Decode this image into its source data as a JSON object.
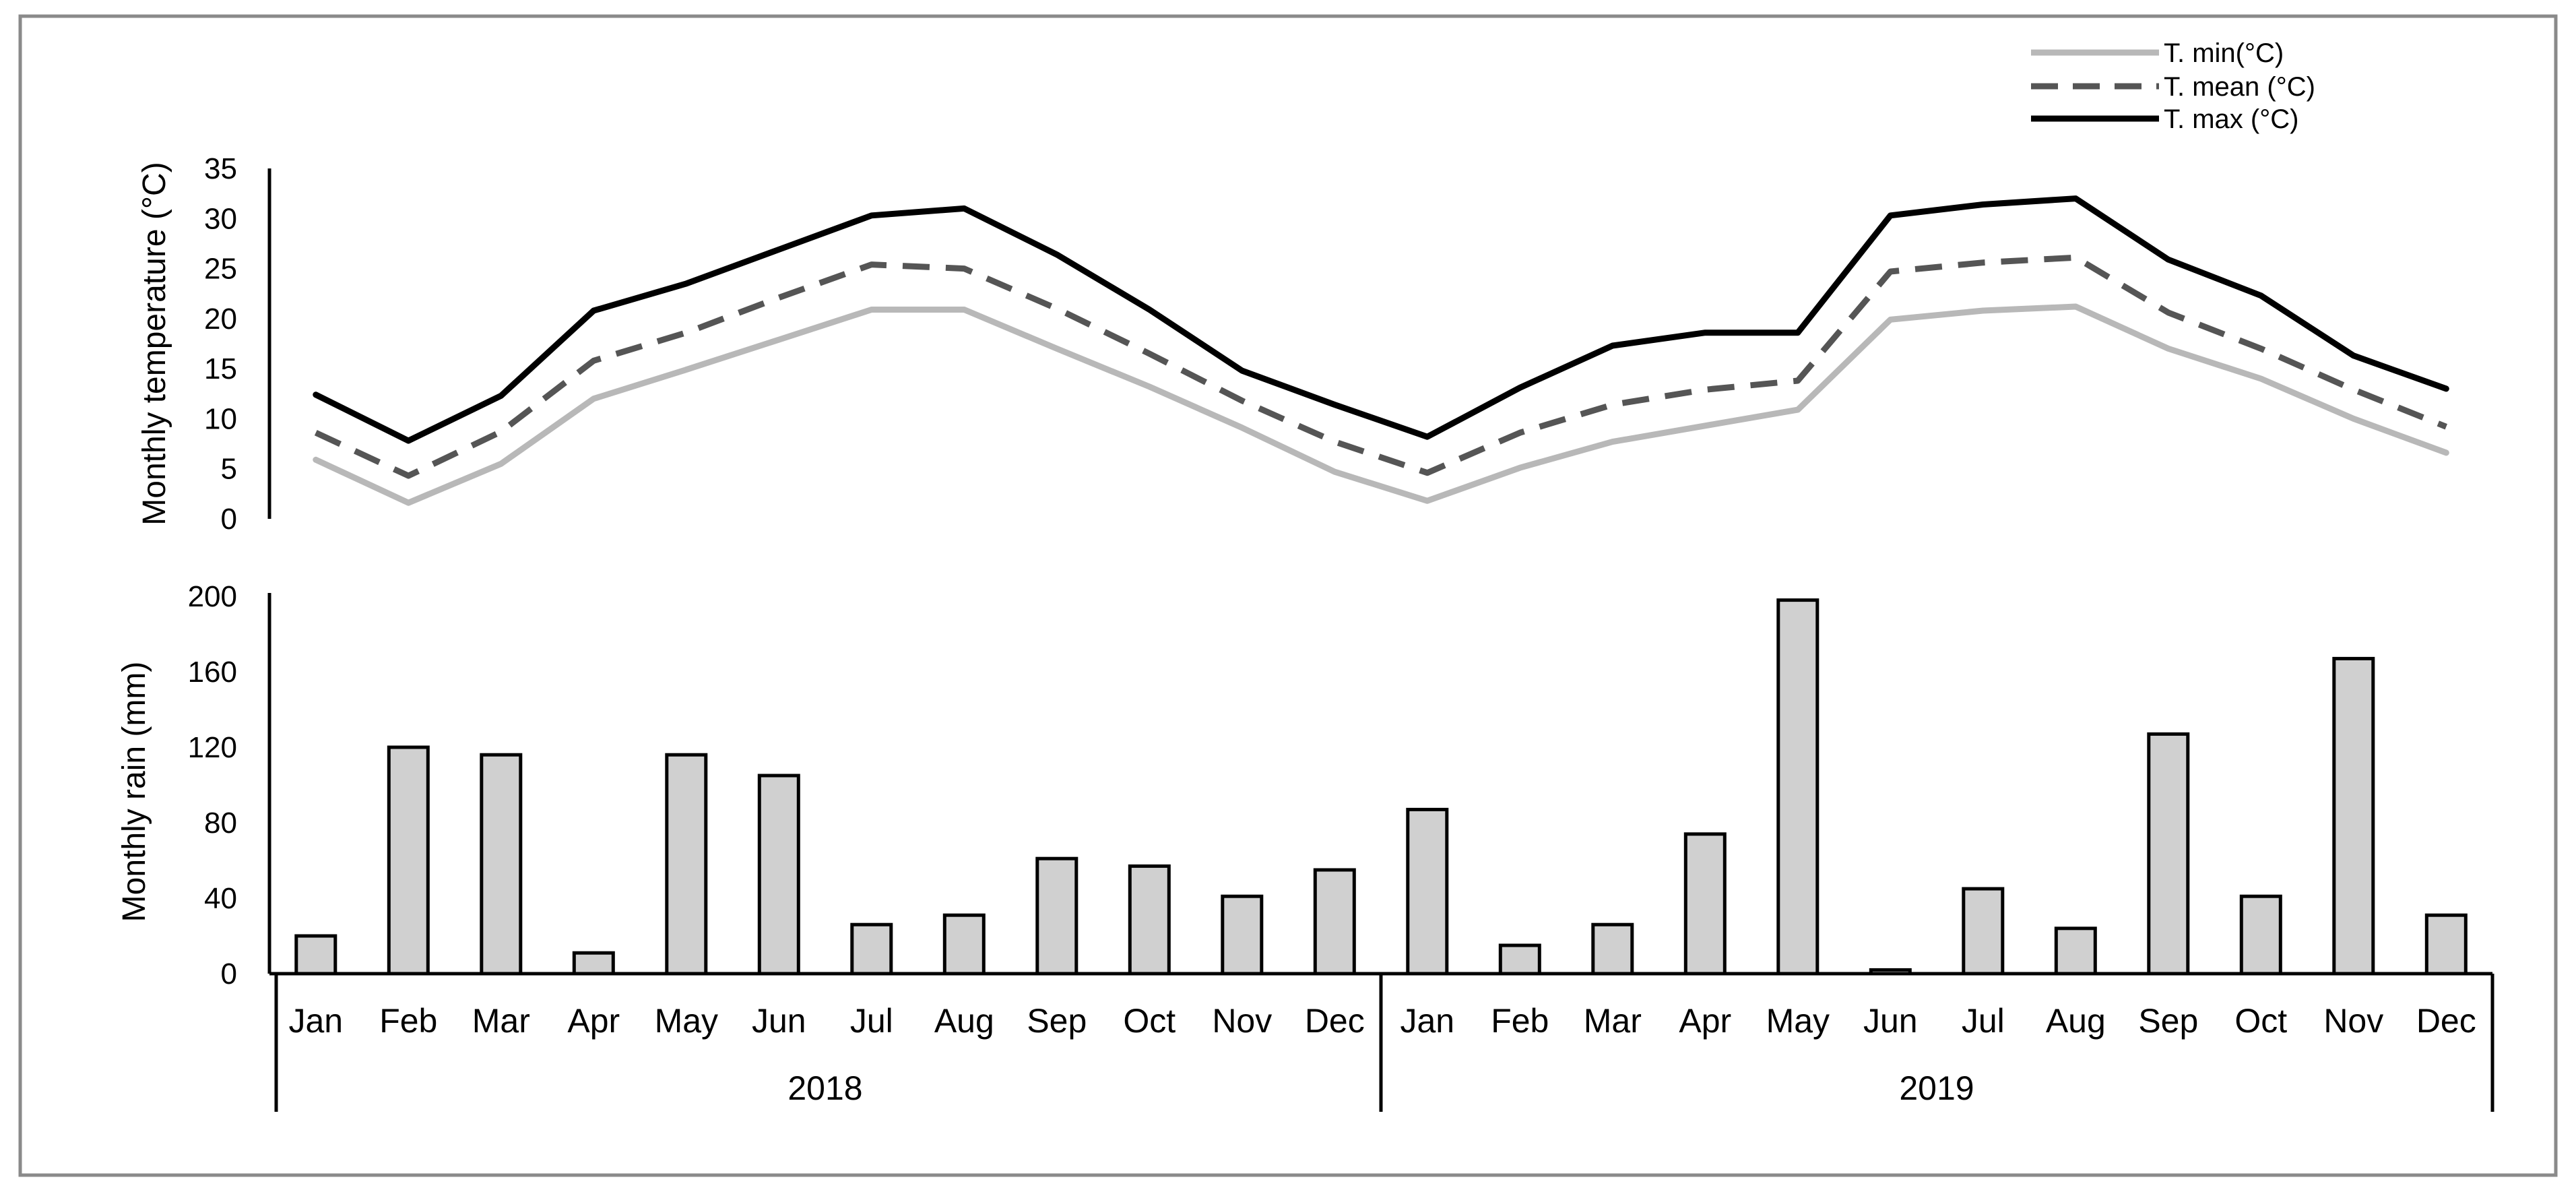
{
  "chart_data": [
    {
      "type": "line",
      "ylabel": "Monthly temperature (°C)",
      "ylim": [
        0,
        35
      ],
      "yticks": [
        0,
        5,
        10,
        15,
        20,
        25,
        30,
        35
      ],
      "grid": false,
      "legend": "top-right",
      "categories": [
        "Jan",
        "Feb",
        "Mar",
        "Apr",
        "May",
        "Jun",
        "Jul",
        "Aug",
        "Sep",
        "Oct",
        "Nov",
        "Dec",
        "Jan",
        "Feb",
        "Mar",
        "Apr",
        "May",
        "Jun",
        "Jul",
        "Aug",
        "Sep",
        "Oct",
        "Nov",
        "Dec"
      ],
      "series": [
        {
          "name": "T. min(°C)",
          "color": "#b8b8b8",
          "style": "solid",
          "values": [
            5.9,
            1.6,
            5.5,
            12.0,
            14.9,
            17.9,
            20.9,
            20.9,
            17.0,
            13.2,
            9.1,
            4.7,
            1.8,
            5.1,
            7.7,
            9.3,
            10.9,
            19.9,
            20.8,
            21.2,
            17.0,
            14.0,
            10.0,
            6.6
          ]
        },
        {
          "name": "T. mean (°C)",
          "color": "#555555",
          "style": "dashed",
          "values": [
            8.6,
            4.3,
            8.7,
            15.8,
            18.6,
            22.1,
            25.4,
            25.0,
            21.0,
            16.5,
            11.8,
            7.7,
            4.6,
            8.6,
            11.4,
            12.9,
            13.8,
            24.7,
            25.6,
            26.1,
            20.6,
            17.0,
            12.9,
            9.2
          ]
        },
        {
          "name": "T. max (°C)",
          "color": "#000000",
          "style": "solid",
          "values": [
            12.4,
            7.8,
            12.3,
            20.8,
            23.5,
            26.9,
            30.3,
            31.0,
            26.4,
            20.9,
            14.8,
            11.4,
            8.2,
            13.1,
            17.3,
            18.6,
            18.6,
            30.3,
            31.4,
            32.0,
            25.9,
            22.3,
            16.3,
            13.0
          ]
        }
      ]
    },
    {
      "type": "bar",
      "ylabel": "Monthly rain (mm)",
      "ylim": [
        0,
        200
      ],
      "yticks": [
        0,
        40,
        80,
        120,
        160,
        200
      ],
      "grid": false,
      "categories": [
        "Jan",
        "Feb",
        "Mar",
        "Apr",
        "May",
        "Jun",
        "Jul",
        "Aug",
        "Sep",
        "Oct",
        "Nov",
        "Dec",
        "Jan",
        "Feb",
        "Mar",
        "Apr",
        "May",
        "Jun",
        "Jul",
        "Aug",
        "Sep",
        "Oct",
        "Nov",
        "Dec"
      ],
      "groups": [
        {
          "label": "2018",
          "span": 12
        },
        {
          "label": "2019",
          "span": 12
        }
      ],
      "values": [
        20,
        120,
        116,
        11,
        116,
        105,
        26,
        31,
        61,
        57,
        41,
        55,
        87,
        15,
        26,
        74,
        198,
        2,
        45,
        24,
        127,
        41,
        167,
        31
      ],
      "bar_color": "#d0d0d0"
    }
  ]
}
